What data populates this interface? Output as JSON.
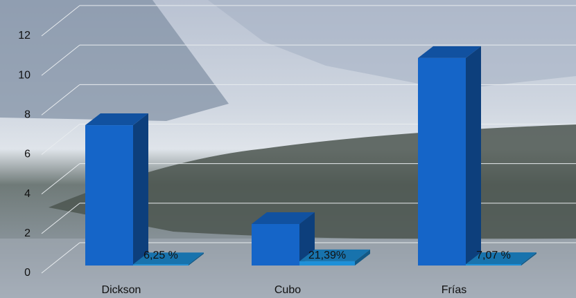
{
  "chart_data": {
    "type": "bar3d",
    "categories": [
      "Dickson",
      "Cubo",
      "Frías"
    ],
    "series": [
      {
        "color": "#1565c8",
        "values": [
          7.1,
          2.1,
          10.5
        ]
      },
      {
        "color": "#1e90d8",
        "values": [
          0.0625,
          0.2139,
          0.0707
        ],
        "value_labels": [
          "6,25 %",
          "21,39%",
          "7,07 %"
        ]
      }
    ],
    "ylim": [
      0,
      12
    ],
    "yticks": [
      0,
      2,
      4,
      6,
      8,
      10,
      12
    ],
    "grid": true
  }
}
